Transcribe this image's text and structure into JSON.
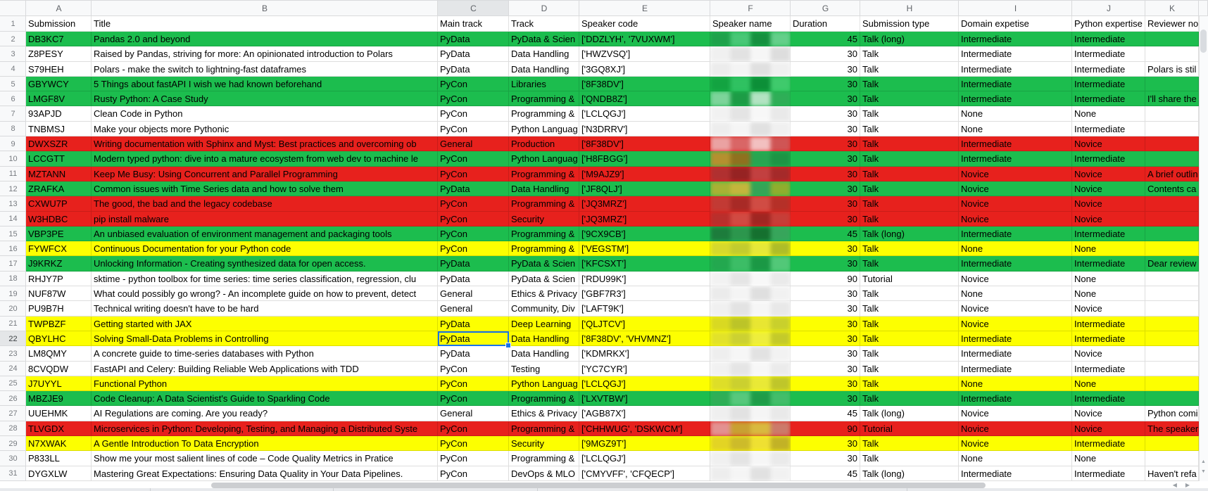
{
  "palette": {
    "green": "#1cbd4e",
    "red": "#e7211d",
    "yellow": "#fdff00",
    "white": "#ffffff",
    "selection_blue": "#1a73e8",
    "header_bg": "#f8f9fa"
  },
  "col_letters": [
    "A",
    "B",
    "C",
    "D",
    "E",
    "F",
    "G",
    "H",
    "I",
    "J",
    "K"
  ],
  "headers": {
    "submission": "Submission",
    "title": "Title",
    "main_track": "Main track",
    "track": "Track",
    "speaker_code": "Speaker code",
    "speaker_name": "Speaker name",
    "duration": "Duration",
    "submission_type": "Submission type",
    "domain_expertise": "Domain expetise",
    "python_expertise": "Python expertise",
    "reviewer_notes": "Reviewer no"
  },
  "selection": {
    "row": 22,
    "col": "C"
  },
  "scroll_icons": {
    "up": "▲",
    "down": "▼",
    "left": "◀",
    "right": "▶"
  },
  "rows": [
    {
      "n": 2,
      "a": "DB3KC7",
      "title": "Pandas 2.0 and beyond",
      "main": "PyData",
      "track": "PyData & Scien",
      "code": "['DDZLYH', '7VUXWM']",
      "dur": "45",
      "type": "Talk (long)",
      "domain": "Intermediate",
      "python": "Intermediate",
      "note": "",
      "bg": "green",
      "blur": [
        "#1ea14b",
        "#48c776",
        "#15903f",
        "#64cf8a"
      ]
    },
    {
      "n": 3,
      "a": "Z8PESY",
      "title": "Raised by Pandas, striving for more: An opinionated introduction to Polars",
      "main": "PyData",
      "track": "Data Handling",
      "code": "['HWZVSQ']",
      "dur": "30",
      "type": "Talk",
      "domain": "Intermediate",
      "python": "Intermediate",
      "note": "",
      "bg": "white",
      "blur": [
        "#f0f0f0",
        "#e2e2e2",
        "#f6f6f6",
        "#dddddd"
      ]
    },
    {
      "n": 4,
      "a": "S79HEH",
      "title": "Polars - make the switch to lightning-fast dataframes",
      "main": "PyData",
      "track": "Data Handling",
      "code": "['3GQ8XJ']",
      "dur": "30",
      "type": "Talk",
      "domain": "Intermediate",
      "python": "Intermediate",
      "note": "Polars is stil",
      "bg": "white",
      "blur": [
        "#ececec",
        "#f4f4f4",
        "#e0e0e0",
        "#f0f0f0"
      ]
    },
    {
      "n": 5,
      "a": "GBYWCY",
      "title": "5 Things about fastAPI I wish we had known beforehand",
      "main": "PyCon",
      "track": "Libraries",
      "code": "['8F38DV']",
      "dur": "30",
      "type": "Talk",
      "domain": "Intermediate",
      "python": "Intermediate",
      "note": "",
      "bg": "green",
      "blur": [
        "#13a341",
        "#2fc161",
        "#0c8f38",
        "#3fca6c"
      ]
    },
    {
      "n": 6,
      "a": "LMGF8V",
      "title": "Rusty Python: A Case Study",
      "main": "PyCon",
      "track": "Programming &",
      "code": "['QNDB8Z']",
      "dur": "30",
      "type": "Talk",
      "domain": "Intermediate",
      "python": "Intermediate",
      "note": "I'll share the",
      "bg": "green",
      "blur": [
        "#7dd49a",
        "#1d9c46",
        "#b2e3c2",
        "#2fae57"
      ]
    },
    {
      "n": 7,
      "a": "93APJD",
      "title": "Clean Code in Python",
      "main": "PyCon",
      "track": "Programming &",
      "code": "['LCLQGJ']",
      "dur": "30",
      "type": "Talk",
      "domain": "None",
      "python": "None",
      "note": "",
      "bg": "white",
      "blur": [
        "#f1f1f1",
        "#e4e4e4",
        "#f7f7f7",
        "#e9e9e9"
      ]
    },
    {
      "n": 8,
      "a": "TNBMSJ",
      "title": "Make your objects more Pythonic",
      "main": "PyCon",
      "track": "Python Languag",
      "code": "['N3DRRV']",
      "dur": "30",
      "type": "Talk",
      "domain": "None",
      "python": "Intermediate",
      "note": "",
      "bg": "white",
      "blur": [
        "#ededed",
        "#f5f5f5",
        "#e1e1e1",
        "#f0f0f0"
      ]
    },
    {
      "n": 9,
      "a": "DWXSZR",
      "title": "Writing documentation with Sphinx and Myst: Best practices and overcoming ob",
      "main": "General",
      "track": "Production",
      "code": "['8F38DV']",
      "dur": "30",
      "type": "Talk",
      "domain": "Intermediate",
      "python": "Novice",
      "note": "",
      "bg": "red",
      "blur": [
        "#eaa2a2",
        "#d96666",
        "#f2c0c0",
        "#cf5555"
      ]
    },
    {
      "n": 10,
      "a": "LCCGTT",
      "title": "Modern typed python: dive into a mature ecosystem from web dev to machine le",
      "main": "PyCon",
      "track": "Python Languag",
      "code": "['H8FBGG']",
      "dur": "30",
      "type": "Talk",
      "domain": "Intermediate",
      "python": "Intermediate",
      "note": "",
      "bg": "green",
      "blur": [
        "#b5902f",
        "#8f711f",
        "#27a551",
        "#1d9445"
      ]
    },
    {
      "n": 11,
      "a": "MZTANN",
      "title": "Keep Me Busy: Using Concurrent and Parallel Programming",
      "main": "PyCon",
      "track": "Programming &",
      "code": "['M9AJZ9']",
      "dur": "30",
      "type": "Talk",
      "domain": "Novice",
      "python": "Novice",
      "note": "A brief outlin",
      "bg": "red",
      "blur": [
        "#b03030",
        "#962323",
        "#c24040",
        "#a52a2a"
      ]
    },
    {
      "n": 12,
      "a": "ZRAFKA",
      "title": "Common issues with Time Series data and how to solve them",
      "main": "PyData",
      "track": "Data Handling",
      "code": "['JF8QLJ']",
      "dur": "30",
      "type": "Talk",
      "domain": "Novice",
      "python": "Novice",
      "note": "Contents ca",
      "bg": "green",
      "blur": [
        "#a8b234",
        "#c3b63c",
        "#35a457",
        "#8fae2e"
      ]
    },
    {
      "n": 13,
      "a": "CXWU7P",
      "title": "The good, the bad and the legacy codebase",
      "main": "PyCon",
      "track": "Programming &",
      "code": "['JQ3MRZ']",
      "dur": "30",
      "type": "Talk",
      "domain": "Novice",
      "python": "Novice",
      "note": "",
      "bg": "red",
      "blur": [
        "#c23a34",
        "#a82a26",
        "#d04c44",
        "#b53028"
      ]
    },
    {
      "n": 14,
      "a": "W3HDBC",
      "title": "pip install malware",
      "main": "PyCon",
      "track": "Security",
      "code": "['JQ3MRZ']",
      "dur": "30",
      "type": "Talk",
      "domain": "Novice",
      "python": "Novice",
      "note": "",
      "bg": "red",
      "blur": [
        "#b92f2c",
        "#d14a42",
        "#a02622",
        "#c63e38"
      ]
    },
    {
      "n": 15,
      "a": "VBP3PE",
      "title": "An unbiased evaluation of environment management and packaging tools",
      "main": "PyCon",
      "track": "Programming &",
      "code": "['9CX9CB']",
      "dur": "45",
      "type": "Talk (long)",
      "domain": "Intermediate",
      "python": "Intermediate",
      "note": "",
      "bg": "green",
      "blur": [
        "#1d7c3c",
        "#2c964d",
        "#15702f",
        "#37a55b"
      ]
    },
    {
      "n": 16,
      "a": "FYWFCX",
      "title": "Continuous Documentation for your Python code",
      "main": "PyCon",
      "track": "Programming &",
      "code": "['VEGSTM']",
      "dur": "30",
      "type": "Talk",
      "domain": "None",
      "python": "None",
      "note": "",
      "bg": "yellow",
      "blur": [
        "#d6d92c",
        "#c2cc2e",
        "#e6e838",
        "#aebd28"
      ]
    },
    {
      "n": 17,
      "a": "J9KRKZ",
      "title": "Unlocking Information - Creating synthesized data for open access.",
      "main": "PyData",
      "track": "PyData & Scien",
      "code": "['KFCSXT']",
      "dur": "30",
      "type": "Talk",
      "domain": "Intermediate",
      "python": "Intermediate",
      "note": "Dear review",
      "bg": "green",
      "blur": [
        "#23a84f",
        "#3cbd66",
        "#1b9845",
        "#52c878"
      ]
    },
    {
      "n": 18,
      "a": "RHJY7P",
      "title": "sktime - python toolbox for time series: time series classification, regression, clu",
      "main": "PyData",
      "track": "PyData & Scien",
      "code": "['RDU99K']",
      "dur": "90",
      "type": "Tutorial",
      "domain": "Novice",
      "python": "None",
      "note": "",
      "bg": "white",
      "blur": [
        "#f2f2f2",
        "#e5e5e5",
        "#f8f8f8",
        "#eaeaea"
      ]
    },
    {
      "n": 19,
      "a": "NUF87W",
      "title": "What could possibly go wrong? - An incomplete guide on how to prevent, detect",
      "main": "General",
      "track": "Ethics & Privacy",
      "code": "['GBF7R3']",
      "dur": "30",
      "type": "Talk",
      "domain": "None",
      "python": "None",
      "note": "",
      "bg": "white",
      "blur": [
        "#ebebeb",
        "#f4f4f4",
        "#dfdfdf",
        "#f1f1f1"
      ]
    },
    {
      "n": 20,
      "a": "PU9B7H",
      "title": "Technical writing doesn't have to be hard",
      "main": "General",
      "track": "Community, Div",
      "code": "['LAFT9K']",
      "dur": "30",
      "type": "Talk",
      "domain": "Novice",
      "python": "Novice",
      "note": "",
      "bg": "white",
      "blur": [
        "#f0f0f0",
        "#e3e3e3",
        "#f6f6f6",
        "#e8e8e8"
      ]
    },
    {
      "n": 21,
      "a": "TWPBZF",
      "title": "Getting started with JAX",
      "main": "PyData",
      "track": "Deep Learning",
      "code": "['QLJTCV']",
      "dur": "30",
      "type": "Talk",
      "domain": "Novice",
      "python": "Intermediate",
      "note": "",
      "bg": "yellow",
      "blur": [
        "#d9d922",
        "#bcc428",
        "#e8e632",
        "#c9d02c"
      ]
    },
    {
      "n": 22,
      "a": "QBYLHC",
      "title": "Solving Small-Data Problems in Controlling",
      "main": "PyData",
      "track": "Data Handling",
      "code": "['8F38DV', 'VHVMNZ']",
      "dur": "30",
      "type": "Talk",
      "domain": "Intermediate",
      "python": "Intermediate",
      "note": "",
      "bg": "yellow",
      "blur": [
        "#e2e22a",
        "#ccd132",
        "#eeee3c",
        "#c4ca2a"
      ]
    },
    {
      "n": 23,
      "a": "LM8QMY",
      "title": "A concrete guide to time-series databases with Python",
      "main": "PyData",
      "track": "Data Handling",
      "code": "['KDMRKX']",
      "dur": "30",
      "type": "Talk",
      "domain": "Intermediate",
      "python": "Novice",
      "note": "",
      "bg": "white",
      "blur": [
        "#eeeeee",
        "#f6f6f6",
        "#e2e2e2",
        "#f2f2f2"
      ]
    },
    {
      "n": 24,
      "a": "8CVQDW",
      "title": "FastAPI and Celery: Building Reliable Web Applications with TDD",
      "main": "PyCon",
      "track": "Testing",
      "code": "['YC7CYR']",
      "dur": "30",
      "type": "Talk",
      "domain": "Intermediate",
      "python": "Intermediate",
      "note": "",
      "bg": "white",
      "blur": [
        "#f1f1f1",
        "#e5e5e5",
        "#f7f7f7",
        "#ebebeb"
      ]
    },
    {
      "n": 25,
      "a": "J7UYYL",
      "title": "Functional Python",
      "main": "PyCon",
      "track": "Python Languag",
      "code": "['LCLQGJ']",
      "dur": "30",
      "type": "Talk",
      "domain": "None",
      "python": "None",
      "note": "",
      "bg": "yellow",
      "blur": [
        "#dede28",
        "#cbd02f",
        "#e9e936",
        "#bfc62a"
      ]
    },
    {
      "n": 26,
      "a": "MBZJE9",
      "title": "Code Cleanup: A Data Scientist's Guide to Sparkling Code",
      "main": "PyCon",
      "track": "Programming &",
      "code": "['LXVTBW']",
      "dur": "30",
      "type": "Talk",
      "domain": "Intermediate",
      "python": "Intermediate",
      "note": "",
      "bg": "green",
      "blur": [
        "#2fae57",
        "#57c87c",
        "#1f9c49",
        "#43bd6a"
      ]
    },
    {
      "n": 27,
      "a": "UUEHMK",
      "title": "AI Regulations are coming. Are you ready?",
      "main": "General",
      "track": "Ethics & Privacy",
      "code": "['AGB87X']",
      "dur": "45",
      "type": "Talk (long)",
      "domain": "Novice",
      "python": "Novice",
      "note": "Python comi",
      "bg": "white",
      "blur": [
        "#efefef",
        "#e2e2e2",
        "#f5f5f5",
        "#e9e9e9"
      ]
    },
    {
      "n": 28,
      "a": "TLVGDX",
      "title": "Microservices in Python: Developing, Testing, and Managing a Distributed Syste",
      "main": "PyCon",
      "track": "Programming &",
      "code": "['CHHWUG', 'DSKWCM']",
      "dur": "90",
      "type": "Tutorial",
      "domain": "Novice",
      "python": "Novice",
      "note": "The speaker",
      "bg": "red",
      "blur": [
        "#e39191",
        "#c9a032",
        "#d9b93f",
        "#cc7a6a"
      ]
    },
    {
      "n": 29,
      "a": "N7XWAK",
      "title": "A Gentle Introduction To Data Encryption",
      "main": "PyCon",
      "track": "Security",
      "code": "['9MGZ9T']",
      "dur": "30",
      "type": "Talk",
      "domain": "Novice",
      "python": "Intermediate",
      "note": "",
      "bg": "yellow",
      "blur": [
        "#e3d424",
        "#cdbb2a",
        "#efe032",
        "#c2b226"
      ]
    },
    {
      "n": 30,
      "a": "P833LL",
      "title": "Show me your most salient lines of code – Code Quality Metrics in Pratice",
      "main": "PyCon",
      "track": "Programming &",
      "code": "['LCLQGJ']",
      "dur": "30",
      "type": "Talk",
      "domain": "None",
      "python": "None",
      "note": "",
      "bg": "white",
      "blur": [
        "#f0f0f0",
        "#e4e4e4",
        "#f6f6f6",
        "#eaeaea"
      ]
    },
    {
      "n": 31,
      "a": "DYGXLW",
      "title": "Mastering Great Expectations: Ensuring Data Quality in Your Data Pipelines.",
      "main": "PyCon",
      "track": "DevOps & MLO",
      "code": "['CMYVFF', 'CFQECP']",
      "dur": "45",
      "type": "Talk (long)",
      "domain": "Intermediate",
      "python": "Intermediate",
      "note": "Haven't refa",
      "bg": "white",
      "blur": [
        "#ededed",
        "#f5f5f5",
        "#e1e1e1",
        "#f1f1f1"
      ]
    }
  ]
}
